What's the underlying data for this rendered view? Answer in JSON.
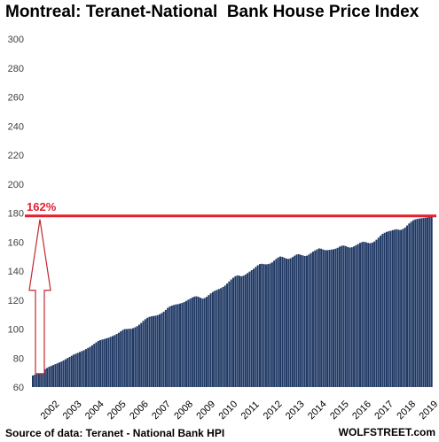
{
  "chart_data": {
    "type": "bar",
    "title": "Montreal: Teranet-National  Bank House Price Index",
    "source": "Source of data: Teranet - National Bank HPI",
    "brand": "WOLFSTREET.com",
    "bar_color": "#1f3864",
    "line_color": "#e4202e",
    "arrow_color": "#c0282e",
    "ylim": [
      60,
      300
    ],
    "yticks": [
      60,
      80,
      100,
      120,
      140,
      160,
      180,
      200,
      220,
      240,
      260,
      280,
      300
    ],
    "x_labels": [
      "2002",
      "2003",
      "2004",
      "2005",
      "2006",
      "2007",
      "2008",
      "2009",
      "2010",
      "2011",
      "2012",
      "2013",
      "2014",
      "2015",
      "2016",
      "2017",
      "2018",
      "2019"
    ],
    "reference_line": 178,
    "annotation": "162%",
    "values": [
      68,
      68.6,
      69.2,
      70,
      70.8,
      71.6,
      72.4,
      73.2,
      74,
      74.6,
      75.2,
      75.8,
      76.4,
      77,
      77.6,
      78.4,
      79.2,
      80,
      80.8,
      81.6,
      82.4,
      83,
      83.6,
      84.2,
      84.8,
      85.4,
      86.2,
      87,
      87.8,
      88.8,
      89.8,
      90.8,
      91.8,
      92.4,
      92.8,
      93.2,
      93.6,
      94,
      94.6,
      95.2,
      95.8,
      96.6,
      97.4,
      98.4,
      99.4,
      100,
      100,
      100.2,
      100.2,
      100.6,
      101.2,
      102,
      103,
      104.2,
      105.6,
      106.8,
      107.8,
      108.4,
      108.8,
      109,
      109.2,
      109.6,
      110.2,
      111,
      112,
      113.2,
      114.6,
      115.6,
      116.2,
      116.6,
      117,
      117.2,
      117.6,
      118,
      118.6,
      119.4,
      120.2,
      121,
      121.8,
      122.4,
      122.6,
      122.2,
      121.6,
      121,
      121.4,
      122.2,
      123.4,
      124.6,
      125.6,
      126.4,
      127,
      127.6,
      128.2,
      129,
      130,
      131.4,
      132.8,
      134.2,
      135.4,
      136.4,
      137,
      136.8,
      136.4,
      136.8,
      137.6,
      138.6,
      139.6,
      140.6,
      141.6,
      142.8,
      144,
      144.8,
      145,
      144.8,
      144.6,
      144.8,
      145.2,
      146,
      147.2,
      148.4,
      149.4,
      150,
      149.8,
      149.2,
      148.6,
      148.4,
      148.8,
      149.6,
      150.6,
      151.4,
      151.6,
      151.2,
      150.8,
      150.4,
      150.6,
      151.4,
      152.4,
      153.4,
      154.2,
      155,
      155.6,
      155.4,
      154.8,
      154.4,
      154.4,
      154.6,
      154.8,
      155,
      155.4,
      156,
      156.8,
      157.4,
      157.6,
      157.2,
      156.6,
      156.2,
      156.4,
      157,
      157.8,
      158.6,
      159.4,
      160,
      160.2,
      159.8,
      159.4,
      159.2,
      159.6,
      160.4,
      161.6,
      163,
      164.4,
      165.6,
      166.4,
      167,
      167.4,
      167.8,
      168.2,
      168.6,
      168.8,
      168.4,
      168.4,
      169,
      170,
      171.4,
      172.8,
      174,
      175,
      175.6,
      176,
      176.2,
      176.4,
      176.6,
      176.8,
      177,
      177.4,
      177.8
    ]
  }
}
